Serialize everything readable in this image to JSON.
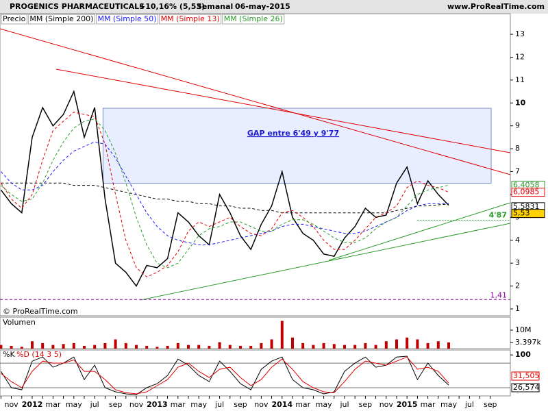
{
  "header": {
    "title": "PROGENICS PHARMACEUTICALS",
    "change": "+10,16% (5,53)",
    "period": "Semanal",
    "date": "06-may-2015",
    "site": "www.ProRealTime.com"
  },
  "legend": [
    "Precio",
    "MM (Simple 200)",
    "MM (Simple 50)",
    "MM (Simple 13)",
    "MM (Simple 26)"
  ],
  "copyright": "© ProRealTime.com",
  "chart_data": [
    {
      "type": "line",
      "panel": "price",
      "categories": [
        null,
        "nov",
        null,
        "2012",
        null,
        "mar",
        null,
        "may",
        null,
        "jul",
        null,
        "sep",
        null,
        "nov",
        null,
        "2013",
        null,
        "mar",
        null,
        "may",
        null,
        "jul",
        null,
        "sep",
        null,
        "nov",
        null,
        "2014",
        null,
        "mar",
        null,
        "may",
        null,
        "jul",
        null,
        "sep",
        null,
        "nov",
        null,
        "2015",
        null,
        "mar",
        null,
        "may",
        null,
        "jul",
        null,
        "sep"
      ],
      "ylim": [
        0.7,
        13.9
      ],
      "yticks": [
        1,
        2,
        3,
        4,
        5,
        6,
        7,
        8,
        9,
        10,
        11,
        12,
        13
      ],
      "series": [
        {
          "name": "Precio",
          "color": "#000000",
          "values": [
            6.2,
            5.6,
            5.2,
            8.5,
            9.8,
            9.0,
            9.5,
            10.5,
            8.5,
            9.8,
            5.8,
            3.0,
            2.6,
            2.0,
            2.9,
            2.8,
            3.2,
            5.2,
            4.8,
            4.2,
            3.8,
            6.0,
            5.2,
            4.2,
            3.6,
            4.7,
            5.5,
            7.0,
            5.0,
            4.3,
            4.0,
            3.4,
            3.3,
            4.1,
            4.6,
            5.4,
            5.0,
            5.1,
            6.5,
            7.2,
            5.6,
            6.6,
            6.0,
            5.53,
            null,
            null,
            null,
            null
          ]
        },
        {
          "name": "MM (Simple 200)",
          "color": "#000000",
          "values": [
            6.5,
            6.5,
            6.5,
            6.5,
            6.5,
            6.5,
            6.5,
            6.4,
            6.4,
            6.4,
            6.3,
            6.2,
            6.1,
            6.0,
            5.9,
            5.8,
            5.8,
            5.7,
            5.7,
            5.6,
            5.6,
            5.5,
            5.5,
            5.4,
            5.4,
            5.3,
            5.3,
            5.2,
            5.2,
            5.2,
            5.2,
            5.2,
            5.2,
            5.2,
            5.2,
            5.2,
            5.2,
            5.2,
            5.3,
            5.4,
            5.5,
            5.5,
            5.55,
            5.5831,
            null,
            null,
            null,
            null
          ]
        },
        {
          "name": "MM (Simple 50)",
          "color": "#1a1aff",
          "values": [
            7.0,
            6.5,
            6.2,
            6.2,
            6.4,
            7.0,
            7.5,
            7.9,
            8.1,
            8.3,
            8.2,
            7.6,
            6.8,
            6.0,
            5.2,
            4.6,
            4.2,
            4.0,
            3.9,
            3.8,
            3.8,
            3.9,
            4.0,
            4.1,
            4.2,
            4.3,
            4.4,
            4.6,
            4.7,
            4.7,
            4.6,
            4.5,
            4.4,
            4.3,
            4.3,
            4.4,
            4.6,
            4.8,
            5.0,
            5.3,
            5.5,
            5.6,
            5.6,
            5.6,
            null,
            null,
            null,
            null
          ]
        },
        {
          "name": "MM (Simple 13)",
          "color": "#e00000",
          "values": [
            6.5,
            5.8,
            5.4,
            6.0,
            7.5,
            8.8,
            9.2,
            9.6,
            9.5,
            9.4,
            8.2,
            6.0,
            4.0,
            2.8,
            2.4,
            2.6,
            2.9,
            3.5,
            4.4,
            4.8,
            4.6,
            4.8,
            5.0,
            4.6,
            4.3,
            4.2,
            4.5,
            5.2,
            5.3,
            5.0,
            4.6,
            4.0,
            3.6,
            3.6,
            4.0,
            4.5,
            5.0,
            5.2,
            5.5,
            6.3,
            6.6,
            6.4,
            6.3,
            6.0985,
            null,
            null,
            null,
            null
          ]
        },
        {
          "name": "MM (Simple 26)",
          "color": "#2a9a2a",
          "values": [
            6.4,
            6.0,
            5.7,
            5.8,
            6.5,
            7.5,
            8.3,
            8.9,
            9.2,
            9.3,
            8.8,
            7.8,
            6.5,
            5.0,
            3.8,
            3.0,
            2.8,
            3.0,
            3.6,
            4.2,
            4.5,
            4.6,
            4.8,
            4.8,
            4.6,
            4.4,
            4.4,
            4.7,
            4.9,
            4.9,
            4.7,
            4.4,
            4.1,
            3.9,
            3.9,
            4.1,
            4.5,
            4.8,
            5.0,
            5.5,
            6.0,
            6.2,
            6.3,
            6.4058,
            null,
            null,
            null,
            null
          ]
        }
      ],
      "level_labels": [
        {
          "value": 6.4058,
          "label": "6,4058",
          "color": "#2a9a2a"
        },
        {
          "value": 6.0985,
          "label": "6,0985",
          "color": "#e00000"
        },
        {
          "value": 5.5831,
          "label": "5,5831",
          "color": "#000000"
        },
        {
          "value": 5.53,
          "label": "5,53",
          "color": "#000000"
        }
      ],
      "gap": {
        "low": 6.49,
        "high": 9.77,
        "label": "GAP entre 6'49 y 9'77"
      },
      "support": {
        "value": 4.87,
        "label": "4'87"
      },
      "low_level": {
        "value": 1.41,
        "label": "1,41"
      }
    },
    {
      "type": "bar",
      "panel": "volume",
      "title": "Volumen",
      "color": "#c00000",
      "values": [
        2,
        1.5,
        1,
        4,
        3,
        2,
        2.5,
        3,
        1.5,
        2,
        3,
        5,
        3,
        2,
        1.5,
        1,
        1.5,
        3,
        2,
        2,
        1.5,
        3.5,
        2,
        1.5,
        1.5,
        3,
        5,
        15,
        6,
        3,
        2,
        3,
        2.5,
        2,
        2,
        3,
        2,
        4,
        5,
        6,
        5,
        3,
        4,
        3.397,
        null,
        null,
        null,
        null
      ],
      "ylim": [
        0,
        17
      ],
      "yticks": [
        {
          "value": 10,
          "label": "10M"
        },
        {
          "value": 3.397,
          "label": "3.397k"
        }
      ]
    },
    {
      "type": "line",
      "panel": "stochastic",
      "ylim": [
        0,
        112
      ],
      "yticks": [
        100
      ],
      "series": [
        {
          "name": "%K",
          "color": "#000000",
          "values": [
            60,
            20,
            15,
            85,
            95,
            70,
            80,
            95,
            40,
            75,
            20,
            10,
            5,
            3,
            20,
            30,
            50,
            90,
            75,
            50,
            35,
            85,
            60,
            30,
            15,
            65,
            85,
            95,
            40,
            20,
            15,
            5,
            10,
            60,
            80,
            95,
            70,
            75,
            95,
            97,
            40,
            80,
            50,
            26.574,
            null,
            null,
            null,
            null
          ]
        },
        {
          "name": "%D (14 3 5)",
          "color": "#e00000",
          "values": [
            55,
            35,
            20,
            60,
            85,
            80,
            80,
            88,
            60,
            60,
            40,
            15,
            8,
            5,
            10,
            25,
            40,
            70,
            80,
            60,
            45,
            65,
            70,
            45,
            25,
            40,
            70,
            90,
            65,
            35,
            20,
            10,
            8,
            35,
            65,
            85,
            80,
            75,
            85,
            95,
            65,
            70,
            60,
            31.505,
            null,
            null,
            null,
            null
          ]
        }
      ],
      "level_labels": [
        {
          "value": 31.505,
          "label": "31,505",
          "color": "#e00000"
        },
        {
          "value": 26.574,
          "label": "26,574",
          "color": "#000000"
        }
      ]
    }
  ]
}
